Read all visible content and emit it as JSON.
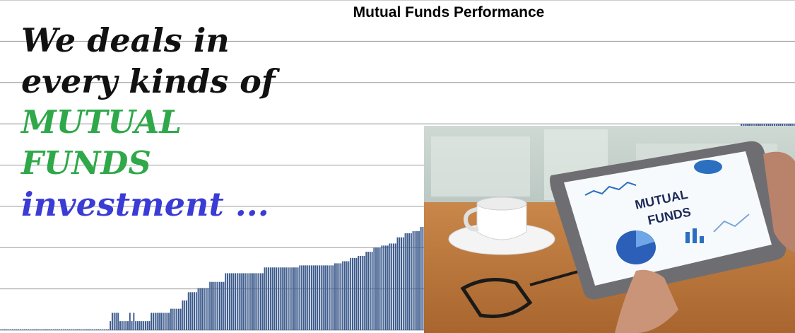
{
  "chart_data": {
    "type": "bar",
    "title": "Mutual Funds Performance",
    "xlabel": "",
    "ylabel": "",
    "ylim": [
      0,
      8
    ],
    "grid": true,
    "bar_color": "#3b5a8c",
    "values": [
      0.02,
      0.02,
      0.02,
      0.02,
      0.02,
      0.02,
      0.02,
      0.02,
      0.02,
      0.02,
      0.02,
      0.02,
      0.02,
      0.02,
      0.02,
      0.02,
      0.02,
      0.02,
      0.02,
      0.02,
      0.02,
      0.02,
      0.02,
      0.02,
      0.02,
      0.02,
      0.02,
      0.02,
      0.02,
      0.02,
      0.02,
      0.02,
      0.02,
      0.02,
      0.02,
      0.02,
      0.02,
      0.02,
      0.02,
      0.02,
      0.02,
      0.02,
      0.02,
      0.02,
      0.02,
      0.02,
      0.02,
      0.02,
      0.02,
      0.02,
      0.02,
      0.02,
      0.02,
      0.02,
      0.02,
      0.02,
      0.22,
      0.42,
      0.42,
      0.42,
      0.42,
      0.22,
      0.22,
      0.22,
      0.22,
      0.22,
      0.42,
      0.22,
      0.42,
      0.22,
      0.22,
      0.22,
      0.22,
      0.22,
      0.22,
      0.22,
      0.22,
      0.42,
      0.42,
      0.42,
      0.42,
      0.42,
      0.42,
      0.42,
      0.42,
      0.42,
      0.42,
      0.52,
      0.52,
      0.52,
      0.52,
      0.52,
      0.52,
      0.72,
      0.72,
      0.72,
      0.92,
      0.92,
      0.92,
      0.92,
      0.92,
      1.02,
      1.02,
      1.02,
      1.02,
      1.02,
      1.02,
      1.17,
      1.17,
      1.17,
      1.17,
      1.17,
      1.17,
      1.17,
      1.17,
      1.38,
      1.38,
      1.38,
      1.38,
      1.38,
      1.38,
      1.38,
      1.38,
      1.38,
      1.38,
      1.38,
      1.38,
      1.38,
      1.38,
      1.38,
      1.38,
      1.38,
      1.38,
      1.38,
      1.38,
      1.52,
      1.52,
      1.52,
      1.52,
      1.52,
      1.52,
      1.52,
      1.52,
      1.52,
      1.52,
      1.52,
      1.52,
      1.52,
      1.52,
      1.52,
      1.52,
      1.52,
      1.52,
      1.57,
      1.57,
      1.57,
      1.57,
      1.57,
      1.57,
      1.57,
      1.57,
      1.57,
      1.57,
      1.57,
      1.57,
      1.57,
      1.57,
      1.57,
      1.57,
      1.57,
      1.57,
      1.62,
      1.62,
      1.62,
      1.62,
      1.67,
      1.67,
      1.67,
      1.67,
      1.75,
      1.75,
      1.75,
      1.75,
      1.8,
      1.8,
      1.8,
      1.8,
      1.9,
      1.9,
      1.9,
      1.9,
      2.0,
      2.0,
      2.0,
      2.0,
      2.05,
      2.05,
      2.05,
      2.05,
      2.1,
      2.1,
      2.1,
      2.1,
      2.25,
      2.25,
      2.25,
      2.25,
      2.35,
      2.35,
      2.35,
      2.35,
      2.4,
      2.4,
      2.4,
      2.4,
      2.5,
      2.5,
      2.5,
      2.5,
      2.55,
      2.55,
      2.55,
      2.55,
      2.7,
      2.7,
      2.7,
      2.7,
      2.85,
      2.85,
      2.85,
      2.85,
      2.9,
      2.9,
      2.9,
      2.9,
      2.95,
      2.95,
      2.95,
      2.95,
      3.05,
      3.05,
      3.05,
      3.05,
      3.1,
      3.1,
      3.1,
      3.1,
      3.15,
      3.15,
      3.15,
      3.15,
      3.25,
      3.25,
      3.25,
      3.25,
      3.3,
      3.3,
      3.3,
      3.3,
      3.4,
      3.4,
      3.4,
      3.4,
      3.45,
      3.45,
      3.45,
      3.45,
      3.5,
      3.5,
      3.5,
      3.5,
      3.6,
      3.6,
      3.6,
      3.6,
      3.65,
      3.65,
      3.65,
      3.65,
      3.7,
      3.7,
      3.7,
      3.7,
      3.75,
      3.75,
      3.75,
      3.75,
      3.8,
      3.8,
      3.8,
      3.8,
      3.85,
      3.85,
      3.85,
      3.85,
      3.9,
      3.9,
      3.9,
      3.9,
      4.0,
      4.0,
      4.0,
      4.0,
      4.05,
      4.05,
      4.05,
      4.05,
      4.1,
      4.1,
      4.1,
      4.1,
      4.15,
      4.15,
      4.15,
      4.15,
      4.2,
      4.2,
      4.2,
      4.2,
      4.25,
      4.25,
      4.25,
      4.25,
      4.3,
      4.3,
      4.3,
      4.3,
      4.35,
      4.35,
      4.35,
      4.35,
      4.4,
      4.4,
      4.4,
      4.4,
      4.45,
      4.45,
      4.45,
      4.45,
      4.5,
      4.5,
      4.5,
      4.5,
      4.55,
      4.55,
      4.55,
      4.55,
      4.6,
      4.6,
      4.6,
      4.6,
      4.65,
      4.65,
      4.65,
      4.65,
      4.7,
      4.7,
      4.7,
      4.7,
      4.75,
      4.75,
      4.75,
      4.75,
      4.8,
      4.8,
      4.8,
      4.8,
      4.85,
      4.85,
      4.85,
      4.85,
      4.9,
      4.9,
      4.9,
      4.9,
      4.95,
      4.95,
      4.95,
      4.95,
      5.0,
      5.0,
      5.0,
      5.0,
      5.0,
      5.0,
      5.0,
      5.0,
      5.0,
      5.0,
      5.0,
      5.0,
      5.0,
      5.0,
      5.0,
      5.0,
      5.0,
      5.0,
      5.0,
      5.0,
      5.0,
      5.0,
      5.0,
      5.0,
      5.0,
      5.0,
      5.0,
      5.0
    ]
  },
  "headline": {
    "line1": "We deals in",
    "line2": "every kinds of",
    "line3": "MUTUAL",
    "line4": "FUNDS",
    "line5": "investment ..."
  },
  "photo": {
    "tablet_text_line1": "MUTUAL",
    "tablet_text_line2": "FUNDS"
  },
  "colors": {
    "headline_dark": "#111111",
    "headline_green": "#2fa84a",
    "headline_blue": "#3b3bd6",
    "bar": "#3b5a8c",
    "grid": "#9a9a9a"
  }
}
